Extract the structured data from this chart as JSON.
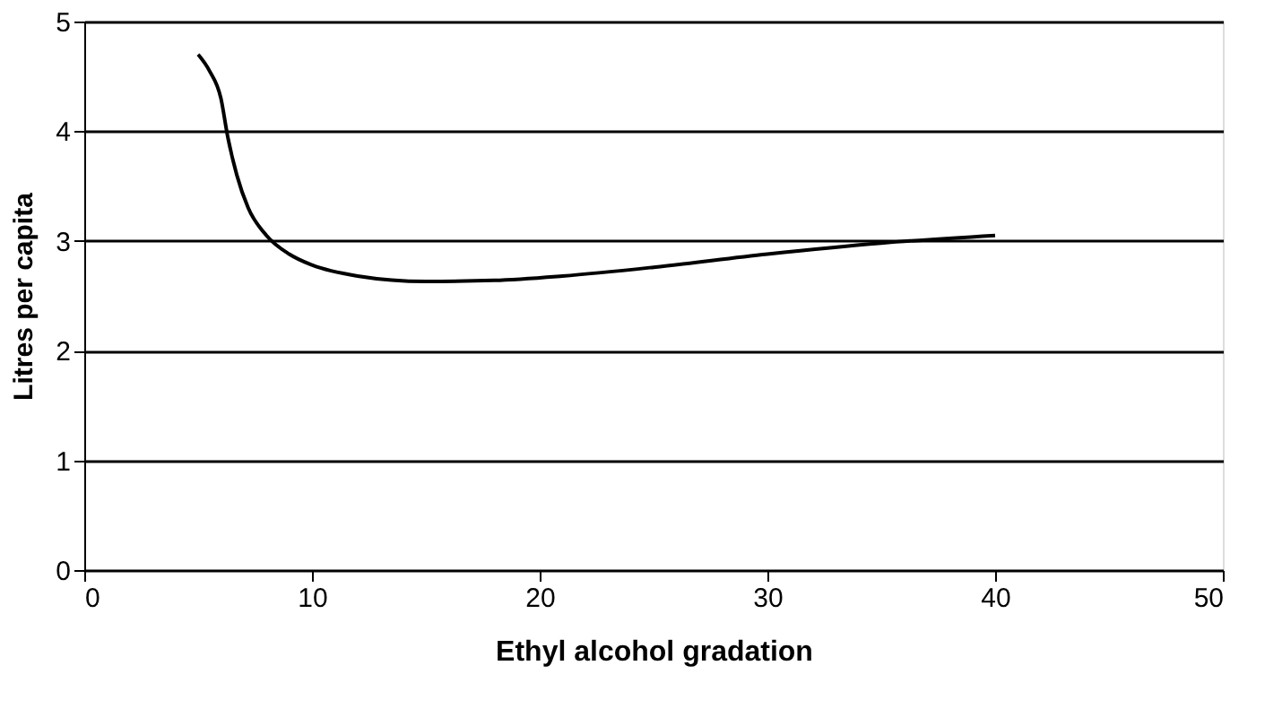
{
  "chart_data": {
    "type": "line",
    "xlabel": "Ethyl alcohol gradation",
    "ylabel": "Litres per capita",
    "x": [
      5,
      5.5,
      6,
      6.3,
      6.7,
      7.2,
      8,
      9,
      10,
      12,
      15,
      18,
      21,
      25,
      30,
      35,
      40
    ],
    "series": [
      {
        "color": "#000000",
        "values": [
          4.7,
          4.55,
          4.3,
          3.95,
          3.6,
          3.3,
          3.05,
          2.88,
          2.78,
          2.68,
          2.63,
          2.64,
          2.68,
          2.76,
          2.88,
          2.98,
          3.05
        ]
      }
    ],
    "xlim": [
      0,
      50
    ],
    "xticks": [
      0,
      10,
      20,
      30,
      40,
      50
    ],
    "ylim": [
      0,
      5
    ],
    "yticks": [
      0,
      1,
      2,
      3,
      4,
      5
    ],
    "grid": "y",
    "marker": "none",
    "line_style": "solid",
    "legend": false
  }
}
